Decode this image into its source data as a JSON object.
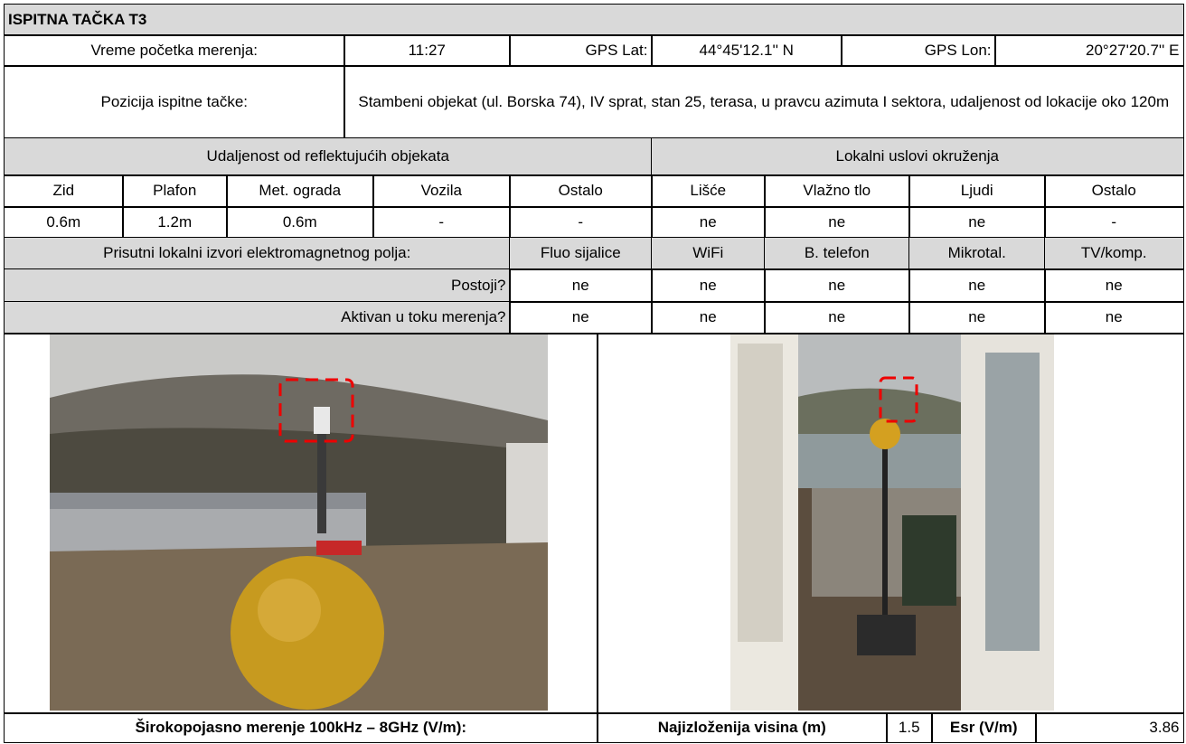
{
  "title": "ISPITNA TAČKA T3",
  "info": {
    "start_time_label": "Vreme početka merenja:",
    "start_time": "11:27",
    "gps_lat_label": "GPS Lat:",
    "gps_lat": "44°45'12.1'' N",
    "gps_lon_label": "GPS Lon:",
    "gps_lon": "20°27'20.7'' E"
  },
  "position": {
    "label": "Pozicija ispitne tačke:",
    "text": "Stambeni objekat (ul. Borska 74), IV  sprat, stan 25, terasa, u pravcu azimuta I sektora, udaljenost od lokacije oko 120m"
  },
  "reflective": {
    "heading": "Udaljenost od reflektujućih objekata",
    "columns": [
      "Zid",
      "Plafon",
      "Met. ograda",
      "Vozila",
      "Ostalo"
    ],
    "values": [
      "0.6m",
      "1.2m",
      "0.6m",
      "-",
      "-"
    ]
  },
  "environment": {
    "heading": "Lokalni uslovi okruženja",
    "columns": [
      "Lišće",
      "Vlažno tlo",
      "Ljudi",
      "Ostalo"
    ],
    "values": [
      "ne",
      "ne",
      "ne",
      "-"
    ]
  },
  "sources": {
    "heading": "Prisutni lokalni izvori elektromagnetnog polja:",
    "columns": [
      "Fluo sijalice",
      "WiFi",
      "B. telefon",
      "Mikrotal.",
      "TV/komp."
    ],
    "rows": [
      {
        "label": "Postoji?",
        "values": [
          "ne",
          "ne",
          "ne",
          "ne",
          "ne"
        ]
      },
      {
        "label": "Aktivan u toku merenja?",
        "values": [
          "ne",
          "ne",
          "ne",
          "ne",
          "ne"
        ]
      }
    ]
  },
  "measurement": {
    "label": "Širokopojasno merenje 100kHz – 8GHz (V/m):",
    "height_label": "Najizloženija visina (m)",
    "height": 1.5,
    "esr_label": "Esr (V/m)",
    "esr": 3.86
  }
}
